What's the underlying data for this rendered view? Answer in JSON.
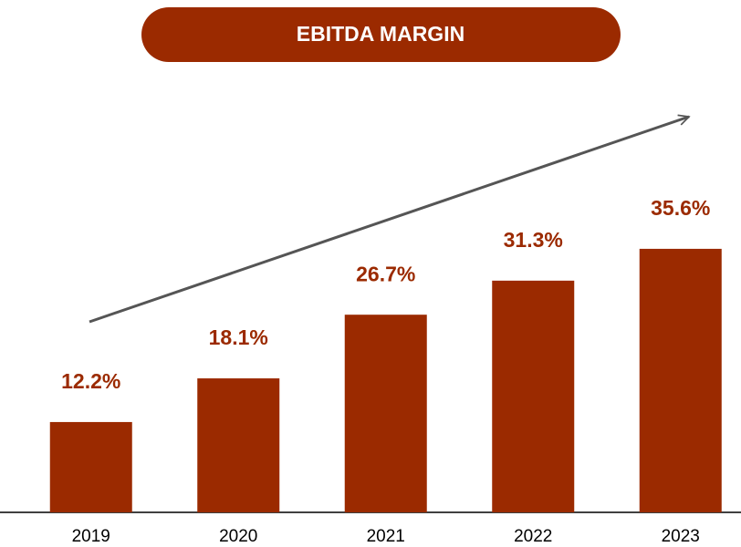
{
  "chart_data": {
    "type": "bar",
    "title": "EBITDA MARGIN",
    "categories": [
      "2019",
      "2020",
      "2021",
      "2022",
      "2023"
    ],
    "values": [
      12.2,
      18.1,
      26.7,
      31.3,
      35.6
    ],
    "value_labels": [
      "12.2%",
      "18.1%",
      "26.7%",
      "31.3%",
      "35.6%"
    ],
    "color": "#9b2a00"
  }
}
